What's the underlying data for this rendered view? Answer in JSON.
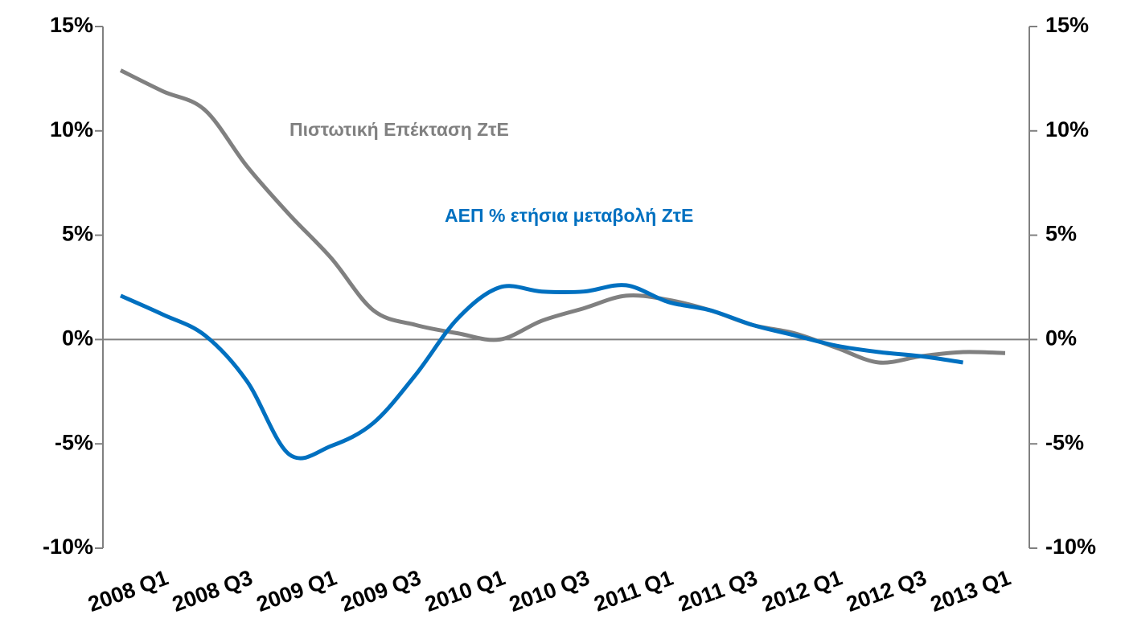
{
  "chart_data": {
    "type": "line",
    "categories": [
      "2008 Q1",
      null,
      "2008 Q3",
      null,
      "2009 Q1",
      null,
      "2009 Q3",
      null,
      "2010 Q1",
      null,
      "2010 Q3",
      null,
      "2011 Q1",
      null,
      "2011 Q3",
      null,
      "2012 Q1",
      null,
      "2012 Q3",
      null,
      "2013 Q1",
      null
    ],
    "series": [
      {
        "name": "Πιστωτική Επέκταση ΖτΕ",
        "color": "#808080",
        "values": [
          12.9,
          11.9,
          11.0,
          8.3,
          6.0,
          3.9,
          1.4,
          0.7,
          0.3,
          0.0,
          0.9,
          1.5,
          2.1,
          1.9,
          1.4,
          0.7,
          0.3,
          -0.4,
          -1.1,
          -0.8,
          -0.6,
          -0.65
        ]
      },
      {
        "name": "ΑΕΠ % ετήσια μεταβολή ΖτΕ",
        "color": "#0070c0",
        "values": [
          2.1,
          1.2,
          0.2,
          -2.0,
          -5.5,
          -5.1,
          -4.0,
          -1.7,
          1.0,
          2.5,
          2.3,
          2.3,
          2.6,
          1.8,
          1.4,
          0.7,
          0.2,
          -0.3,
          -0.6,
          -0.8,
          -1.1,
          null
        ]
      }
    ],
    "ylim": [
      -10,
      15
    ],
    "yticks": [
      {
        "value": -10,
        "label": "-10%"
      },
      {
        "value": -5,
        "label": "-5%"
      },
      {
        "value": 0,
        "label": "0%"
      },
      {
        "value": 5,
        "label": "5%"
      },
      {
        "value": 10,
        "label": "10%"
      },
      {
        "value": 15,
        "label": "15%"
      }
    ],
    "y2lim": [
      -10,
      15
    ],
    "y2ticks": [
      {
        "value": -10,
        "label": "-10%"
      },
      {
        "value": -5,
        "label": "-5%"
      },
      {
        "value": 0,
        "label": "0%"
      },
      {
        "value": 5,
        "label": "5%"
      },
      {
        "value": 10,
        "label": "10%"
      },
      {
        "value": 15,
        "label": "15%"
      }
    ]
  }
}
